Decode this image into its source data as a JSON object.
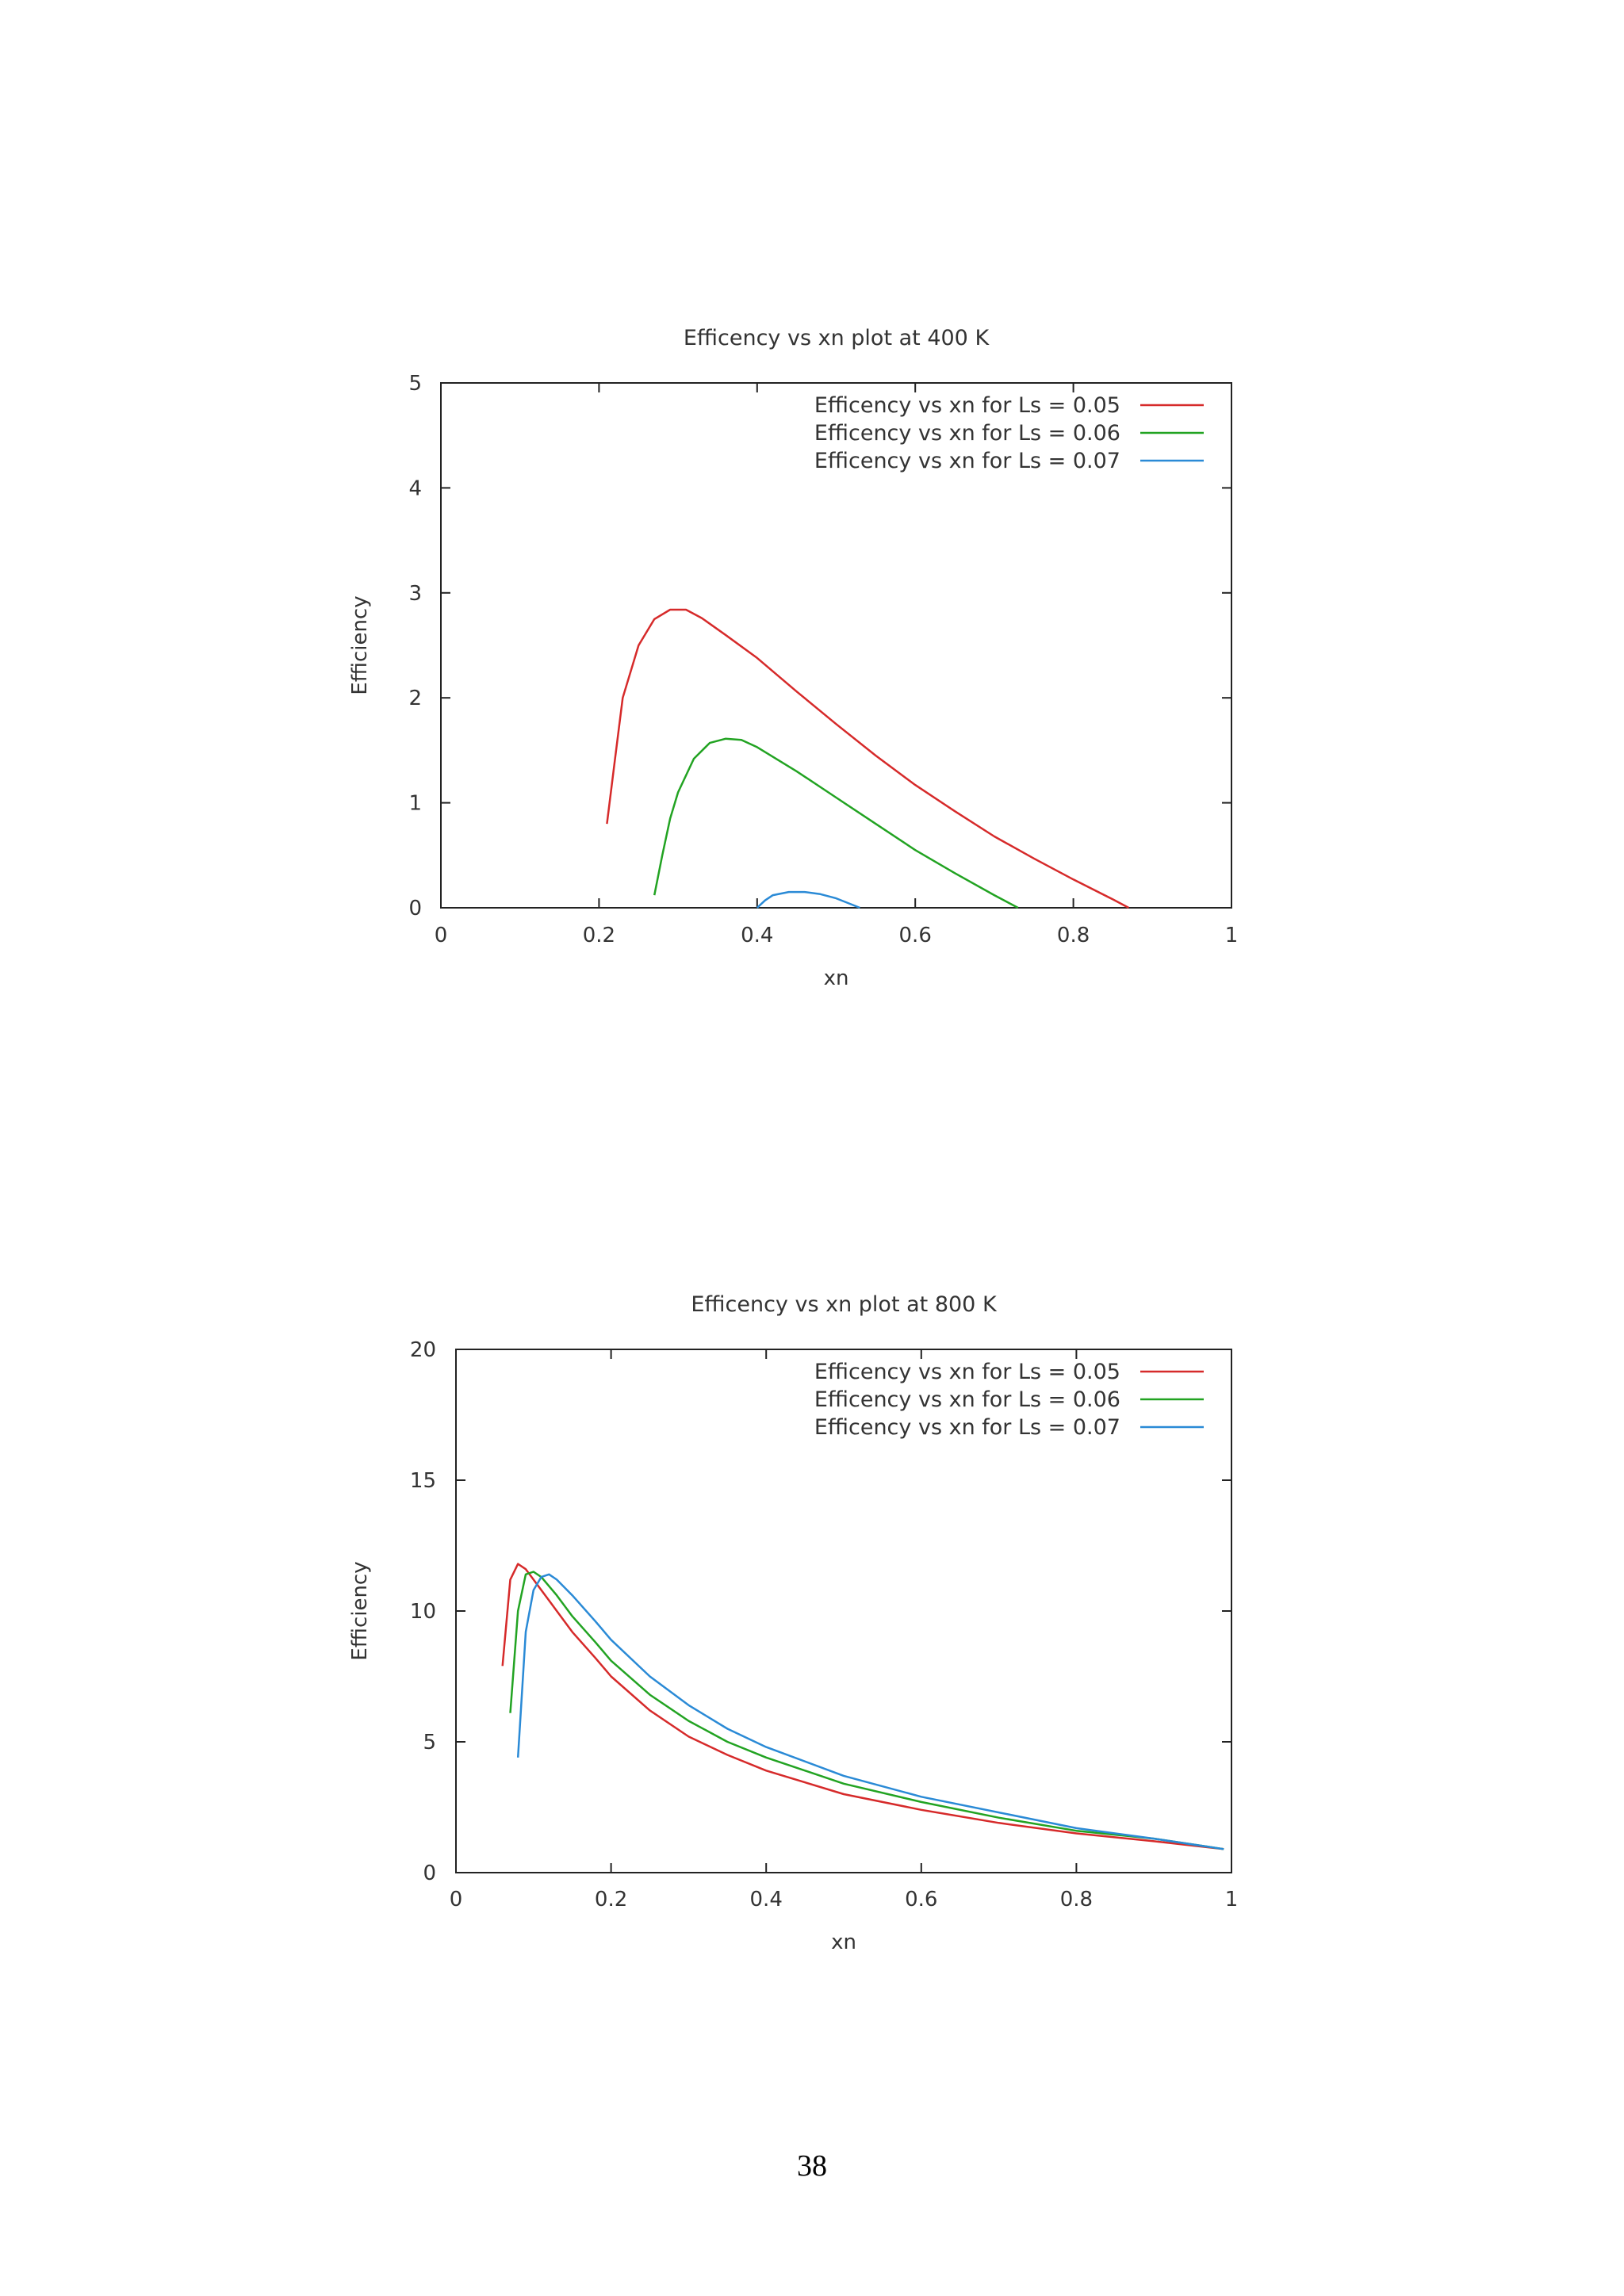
{
  "page": {
    "number": "38"
  },
  "chart_data": [
    {
      "type": "line",
      "title": "Efficency vs xn plot at 400 K",
      "xlabel": "xn",
      "ylabel": "Efficiency",
      "xlim": [
        0,
        1
      ],
      "ylim": [
        0,
        5
      ],
      "xticks": [
        0,
        0.2,
        0.4,
        0.6,
        0.8,
        1
      ],
      "xtick_labels": [
        "0",
        "0.2",
        "0.4",
        "0.6",
        "0.8",
        "1"
      ],
      "yticks": [
        0,
        1,
        2,
        3,
        4,
        5
      ],
      "ytick_labels": [
        "0",
        "1",
        "2",
        "3",
        "4",
        "5"
      ],
      "grid": false,
      "legend": "top-right",
      "series": [
        {
          "name": "Efficency vs xn for Ls = 0.05",
          "color": "#d62a2a",
          "x": [
            0.21,
            0.22,
            0.23,
            0.25,
            0.27,
            0.29,
            0.31,
            0.33,
            0.36,
            0.4,
            0.45,
            0.5,
            0.55,
            0.6,
            0.65,
            0.7,
            0.75,
            0.8,
            0.85,
            0.87
          ],
          "y": [
            0.8,
            1.4,
            2.0,
            2.5,
            2.75,
            2.84,
            2.84,
            2.76,
            2.6,
            2.38,
            2.06,
            1.75,
            1.45,
            1.17,
            0.92,
            0.68,
            0.47,
            0.27,
            0.08,
            0.0
          ]
        },
        {
          "name": "Efficency vs xn for Ls = 0.06",
          "color": "#22a322",
          "x": [
            0.27,
            0.28,
            0.29,
            0.3,
            0.32,
            0.34,
            0.36,
            0.38,
            0.4,
            0.45,
            0.5,
            0.55,
            0.6,
            0.65,
            0.7,
            0.73
          ],
          "y": [
            0.12,
            0.5,
            0.85,
            1.1,
            1.42,
            1.57,
            1.61,
            1.6,
            1.53,
            1.3,
            1.05,
            0.8,
            0.55,
            0.33,
            0.12,
            0.0
          ]
        },
        {
          "name": "Efficency vs xn for Ls = 0.07",
          "color": "#2a8ad6",
          "x": [
            0.4,
            0.41,
            0.42,
            0.44,
            0.46,
            0.48,
            0.5,
            0.52,
            0.53
          ],
          "y": [
            0.0,
            0.07,
            0.12,
            0.15,
            0.15,
            0.13,
            0.09,
            0.03,
            0.0
          ]
        }
      ]
    },
    {
      "type": "line",
      "title": "Efficency vs xn plot at 800 K",
      "xlabel": "xn",
      "ylabel": "Efficiency",
      "xlim": [
        0,
        1
      ],
      "ylim": [
        0,
        20
      ],
      "xticks": [
        0,
        0.2,
        0.4,
        0.6,
        0.8,
        1
      ],
      "xtick_labels": [
        "0",
        "0.2",
        "0.4",
        "0.6",
        "0.8",
        "1"
      ],
      "yticks": [
        0,
        5,
        10,
        15,
        20
      ],
      "ytick_labels": [
        "0",
        "5",
        "10",
        "15",
        "20"
      ],
      "grid": false,
      "legend": "top-right",
      "series": [
        {
          "name": "Efficency vs xn for Ls = 0.05",
          "color": "#d62a2a",
          "x": [
            0.06,
            0.07,
            0.08,
            0.09,
            0.1,
            0.12,
            0.15,
            0.18,
            0.2,
            0.25,
            0.3,
            0.35,
            0.4,
            0.5,
            0.6,
            0.7,
            0.8,
            0.9,
            0.99
          ],
          "y": [
            7.9,
            11.2,
            11.8,
            11.6,
            11.2,
            10.4,
            9.2,
            8.2,
            7.5,
            6.2,
            5.2,
            4.5,
            3.9,
            3.0,
            2.4,
            1.9,
            1.5,
            1.2,
            0.9
          ]
        },
        {
          "name": "Efficency vs xn for Ls = 0.06",
          "color": "#22a322",
          "x": [
            0.07,
            0.08,
            0.09,
            0.1,
            0.11,
            0.13,
            0.15,
            0.18,
            0.2,
            0.25,
            0.3,
            0.35,
            0.4,
            0.5,
            0.6,
            0.7,
            0.8,
            0.9,
            0.99
          ],
          "y": [
            6.1,
            10.0,
            11.4,
            11.5,
            11.3,
            10.6,
            9.8,
            8.8,
            8.1,
            6.8,
            5.8,
            5.0,
            4.4,
            3.4,
            2.7,
            2.1,
            1.6,
            1.3,
            0.9
          ]
        },
        {
          "name": "Efficency vs xn for Ls = 0.07",
          "color": "#2a8ad6",
          "x": [
            0.08,
            0.09,
            0.1,
            0.11,
            0.12,
            0.13,
            0.15,
            0.18,
            0.2,
            0.25,
            0.3,
            0.35,
            0.4,
            0.5,
            0.6,
            0.7,
            0.8,
            0.9,
            0.99
          ],
          "y": [
            4.4,
            9.2,
            10.8,
            11.3,
            11.4,
            11.2,
            10.6,
            9.6,
            8.9,
            7.5,
            6.4,
            5.5,
            4.8,
            3.7,
            2.9,
            2.3,
            1.7,
            1.3,
            0.9
          ]
        }
      ]
    }
  ]
}
